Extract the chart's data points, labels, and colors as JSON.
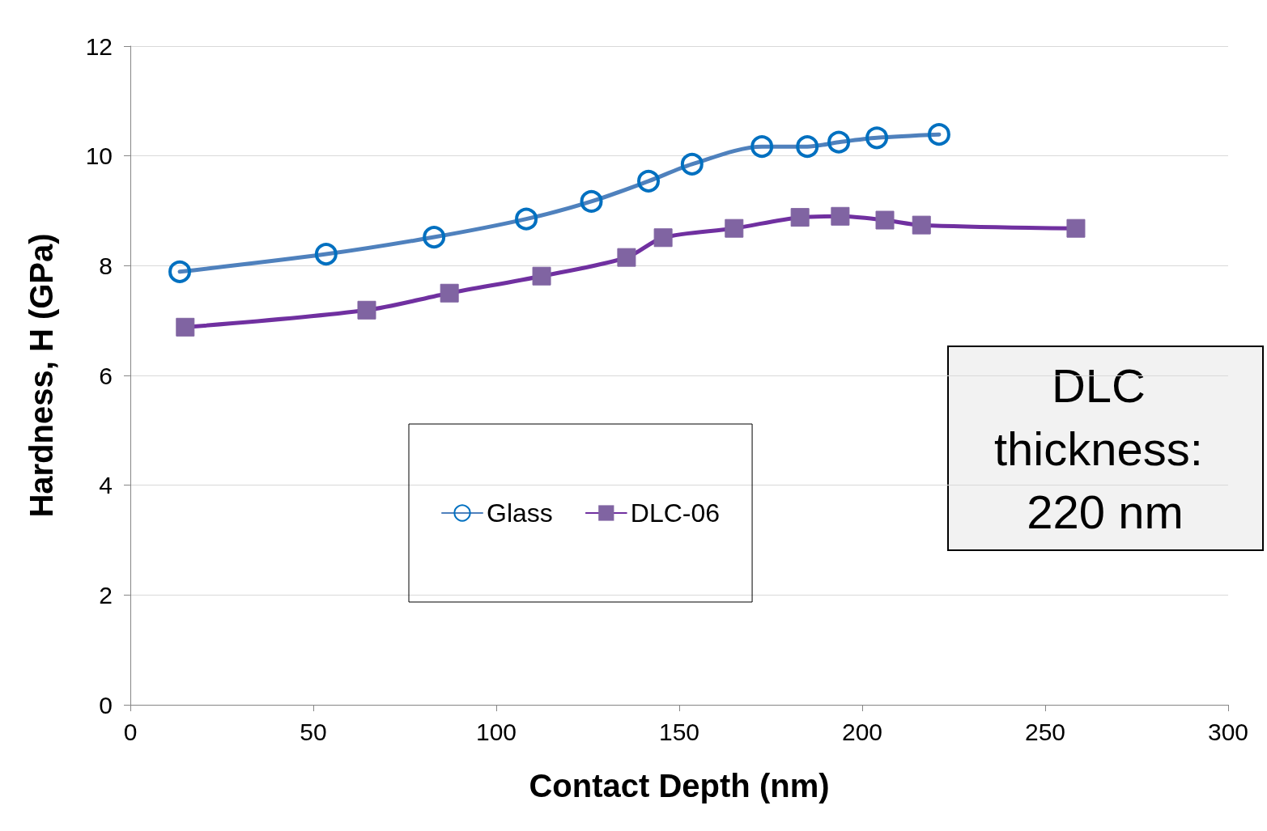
{
  "chart_data": {
    "type": "line",
    "xlabel": "Contact Depth (nm)",
    "ylabel": "Hardness, H (GPa)",
    "xlim": [
      0,
      300
    ],
    "xticks": [
      0,
      50,
      100,
      150,
      200,
      250,
      300
    ],
    "ylim": [
      0,
      12
    ],
    "yticks": [
      0,
      2,
      4,
      6,
      8,
      10,
      12
    ],
    "grid": "y",
    "legend": "center",
    "annotations": [
      "DLC thickness: 220 nm"
    ],
    "series": [
      {
        "name": "Glass",
        "color": "#4f81bd",
        "marker": "circle",
        "x": [
          13.5,
          53.5,
          83,
          108.2,
          126,
          141.6,
          153.5,
          172.6,
          185,
          193.6,
          204,
          221
        ],
        "values": [
          7.89,
          8.21,
          8.52,
          8.85,
          9.17,
          9.54,
          9.85,
          10.17,
          10.17,
          10.25,
          10.33,
          10.39
        ]
      },
      {
        "name": "DLC-06",
        "color": "#7030a0",
        "marker": "square",
        "x": [
          15,
          64.6,
          87.2,
          112.4,
          135.6,
          145.6,
          165,
          183,
          194,
          206.2,
          216.2,
          258.4
        ],
        "values": [
          6.88,
          7.19,
          7.5,
          7.81,
          8.15,
          8.51,
          8.68,
          8.88,
          8.9,
          8.83,
          8.74,
          8.68
        ]
      }
    ]
  }
}
